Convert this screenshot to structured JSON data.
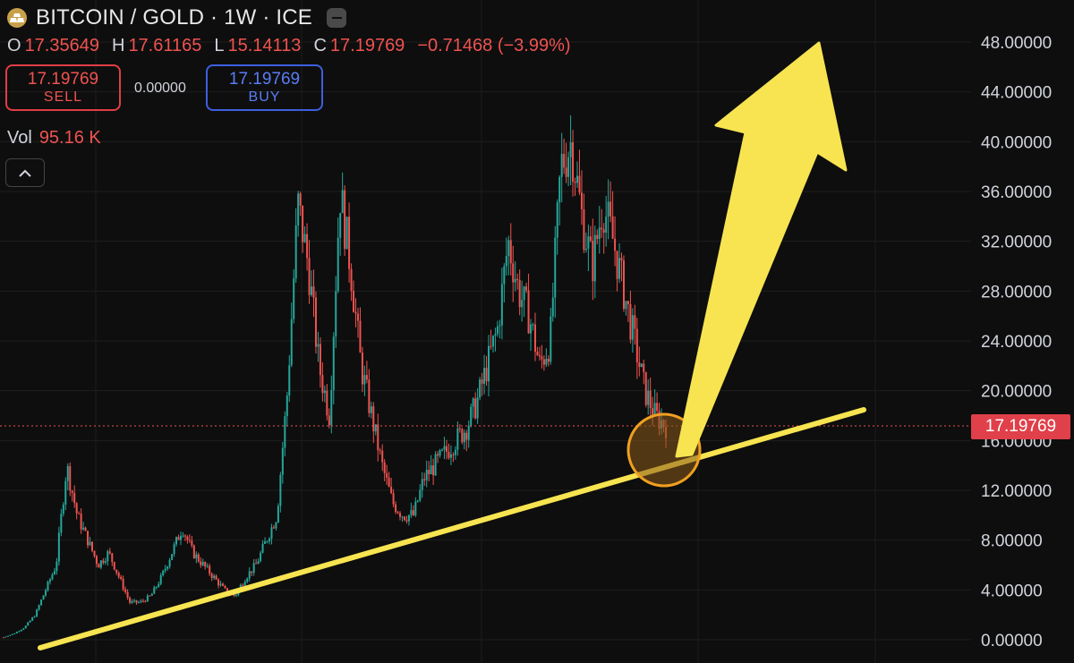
{
  "header": {
    "symbol": "BITCOIN / GOLD · 1W · ICE"
  },
  "ohlc": {
    "open_label": "O",
    "open": "17.35649",
    "high_label": "H",
    "high": "17.61165",
    "low_label": "L",
    "low": "15.14113",
    "close_label": "C",
    "close": "17.19769",
    "change": "−0.71468 (−3.99%)"
  },
  "trade": {
    "sell_price": "17.19769",
    "sell_label": "SELL",
    "spread": "0.00000",
    "buy_price": "17.19769",
    "buy_label": "BUY"
  },
  "volume": {
    "label": "Vol",
    "value": "95.16 K"
  },
  "last_price": "17.19769",
  "colors": {
    "up": "#26a69a",
    "down": "#ef5350",
    "annotation": "#f7e450",
    "circle_fill": "#8a5a1a",
    "circle_stroke": "#f0a020",
    "background": "#0e0e0e"
  },
  "icons": {
    "logo": "gold-bars-icon",
    "collapse": "minus-icon",
    "toggle": "chevron-up-icon"
  },
  "chart_data": {
    "type": "candlestick",
    "title": "BITCOIN / GOLD · 1W · ICE",
    "ylim": [
      0,
      48
    ],
    "yticks": [
      "48.00000",
      "44.00000",
      "40.00000",
      "36.00000",
      "32.00000",
      "28.00000",
      "24.00000",
      "20.00000",
      "16.00000",
      "12.00000",
      "8.00000",
      "4.00000",
      "0.00000"
    ],
    "last_value": 17.19769,
    "grid": true,
    "series_close_approx": [
      0.2,
      0.5,
      1,
      2,
      4,
      6,
      14,
      10,
      8,
      6,
      7,
      5,
      3,
      3,
      3.5,
      5,
      7,
      9,
      7,
      6,
      5,
      4,
      3.5,
      5,
      6,
      8,
      10,
      20,
      35,
      30,
      22,
      18,
      36,
      30,
      22,
      18,
      14,
      11,
      10,
      10,
      13,
      14,
      15,
      16,
      17,
      19,
      22,
      25,
      32,
      28,
      26,
      22,
      24,
      38,
      40,
      34,
      30,
      35,
      32,
      28,
      24,
      20,
      18,
      17.2
    ],
    "annotations": {
      "trendline": "rising support line",
      "arrow": "large yellow arrow pointing up",
      "circle": "highlight at current price"
    }
  }
}
